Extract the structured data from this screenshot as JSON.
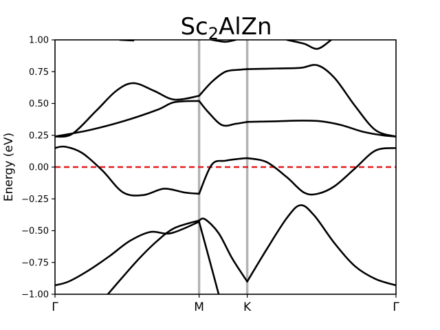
{
  "chart_data": {
    "type": "line",
    "title": {
      "main": "Sc",
      "sub": "2",
      "rest": "AlZn"
    },
    "xlabel": "",
    "ylabel": "Energy (eV)",
    "ylim": [
      -1.0,
      1.0
    ],
    "yticks": [
      -1.0,
      -0.75,
      -0.5,
      -0.25,
      0.0,
      0.25,
      0.5,
      0.75,
      1.0
    ],
    "ytick_labels": [
      "−1.00",
      "−0.75",
      "−0.50",
      "−0.25",
      "0.00",
      "0.25",
      "0.50",
      "0.75",
      "1.00"
    ],
    "xlim": [
      0,
      1
    ],
    "high_symmetry_points": [
      {
        "label": "Γ",
        "x": 0.0
      },
      {
        "label": "M",
        "x": 0.4226
      },
      {
        "label": "K",
        "x": 0.5637
      },
      {
        "label": "Γ",
        "x": 1.0
      }
    ],
    "fermi_level": 0.0,
    "fermi_color": "#e41a1c",
    "band_color": "#000000",
    "vline_color": "#b3b3b3",
    "grid": false,
    "series": [
      {
        "x": [
          0,
          0.04,
          0.1,
          0.16,
          0.22,
          0.28,
          0.34,
          0.4226
        ],
        "values": [
          -0.93,
          -0.9,
          -0.81,
          -0.7,
          -0.58,
          -0.51,
          -0.52,
          -0.43
        ]
      },
      {
        "x": [
          0.4226,
          0.45,
          0.48
        ],
        "values": [
          -0.43,
          -0.7,
          -1.0
        ]
      },
      {
        "x": [
          0.155,
          0.2,
          0.25,
          0.3,
          0.35,
          0.4226
        ],
        "values": [
          -1.0,
          -0.86,
          -0.71,
          -0.58,
          -0.48,
          -0.42
        ]
      },
      {
        "x": [
          0.4226,
          0.44,
          0.48,
          0.52,
          0.5637
        ],
        "values": [
          -0.42,
          -0.41,
          -0.52,
          -0.72,
          -0.9
        ]
      },
      {
        "x": [
          0.5637,
          0.62,
          0.68,
          0.72,
          0.76,
          0.82,
          0.88,
          0.94,
          1.0
        ],
        "values": [
          -0.9,
          -0.65,
          -0.4,
          -0.3,
          -0.38,
          -0.6,
          -0.78,
          -0.88,
          -0.93
        ]
      },
      {
        "x": [
          0,
          0.03,
          0.08,
          0.14,
          0.2,
          0.26,
          0.32,
          0.38,
          0.4226
        ],
        "values": [
          0.15,
          0.16,
          0.11,
          -0.03,
          -0.2,
          -0.22,
          -0.17,
          -0.2,
          -0.21
        ]
      },
      {
        "x": [
          0.4226,
          0.46,
          0.5,
          0.54,
          0.5637
        ],
        "values": [
          -0.21,
          0.02,
          0.05,
          0.065,
          0.07
        ]
      },
      {
        "x": [
          0.5637,
          0.62,
          0.68,
          0.73,
          0.77,
          0.82,
          0.88,
          0.94,
          1.0
        ],
        "values": [
          0.07,
          0.04,
          -0.08,
          -0.2,
          -0.21,
          -0.15,
          -0.01,
          0.13,
          0.15
        ]
      },
      {
        "x": [
          0,
          0.05,
          0.12,
          0.18,
          0.23,
          0.29,
          0.35,
          0.4226
        ],
        "values": [
          0.24,
          0.26,
          0.44,
          0.6,
          0.66,
          0.6,
          0.53,
          0.56
        ]
      },
      {
        "x": [
          0.4226,
          0.46,
          0.5,
          0.54,
          0.5637
        ],
        "values": [
          0.56,
          0.67,
          0.75,
          0.765,
          0.77
        ]
      },
      {
        "x": [
          0.5637,
          0.65,
          0.72,
          0.77,
          0.82,
          0.88,
          0.94,
          1.0
        ],
        "values": [
          0.77,
          0.775,
          0.78,
          0.8,
          0.7,
          0.48,
          0.29,
          0.24
        ]
      },
      {
        "x": [
          0,
          0.1,
          0.2,
          0.3,
          0.35,
          0.4226
        ],
        "values": [
          0.24,
          0.29,
          0.36,
          0.45,
          0.51,
          0.52
        ]
      },
      {
        "x": [
          0.4226,
          0.45,
          0.49,
          0.53,
          0.5637
        ],
        "values": [
          0.52,
          0.43,
          0.33,
          0.34,
          0.355
        ]
      },
      {
        "x": [
          0.5637,
          0.65,
          0.72,
          0.78,
          0.84,
          0.9,
          0.96,
          1.0
        ],
        "values": [
          0.355,
          0.36,
          0.365,
          0.36,
          0.33,
          0.28,
          0.25,
          0.24
        ]
      },
      {
        "x": [
          0.19,
          0.23
        ],
        "values": [
          1.0,
          0.995
        ]
      },
      {
        "x": [
          0.46,
          0.5,
          0.53
        ],
        "values": [
          1.0,
          0.985,
          1.0
        ]
      },
      {
        "x": [
          0.68,
          0.73,
          0.77,
          0.81
        ],
        "values": [
          1.0,
          0.97,
          0.93,
          1.0
        ]
      }
    ]
  }
}
